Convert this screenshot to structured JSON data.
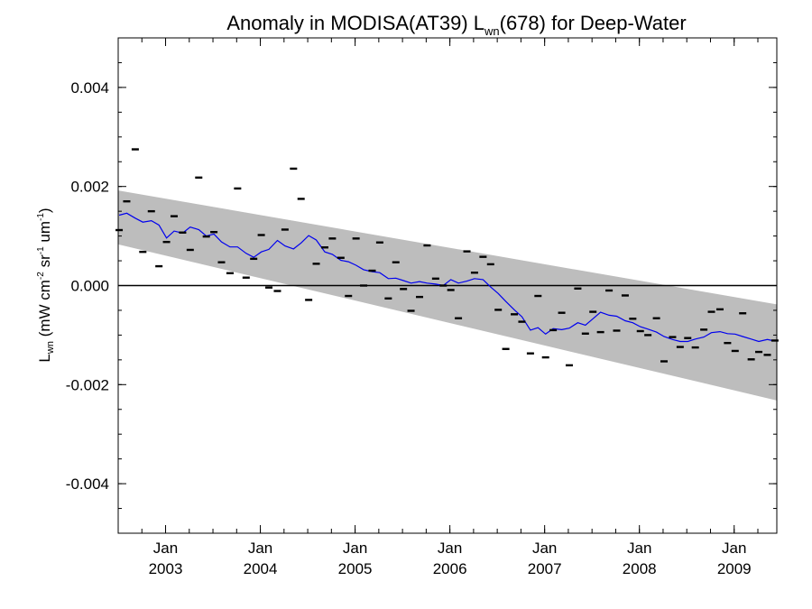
{
  "chart_data": {
    "type": "scatter",
    "title": {
      "prefix": "Anomaly in MODISA(AT39) L",
      "subscript": "wn",
      "suffix": "(678) for Deep-Water"
    },
    "ylabel": {
      "main": "L",
      "sub": "wn",
      "unit_open": " (mW cm",
      "sup1": "-2",
      "mid1": " sr",
      "sup2": "-1",
      "mid2": " um",
      "sup3": "-1",
      "unit_close": ")"
    },
    "xlabel": "",
    "xlim": [
      2002.5,
      2009.45
    ],
    "ylim": [
      -0.005,
      0.005
    ],
    "grid": false,
    "y_ticks": [
      {
        "value": 0.004,
        "label": "0.004"
      },
      {
        "value": 0.002,
        "label": "0.002"
      },
      {
        "value": 0.0,
        "label": "0.000"
      },
      {
        "value": -0.002,
        "label": "-0.002"
      },
      {
        "value": -0.004,
        "label": "-0.004"
      }
    ],
    "x_ticks": [
      {
        "value": 2003.0,
        "month": "Jan",
        "year": "2003"
      },
      {
        "value": 2004.0,
        "month": "Jan",
        "year": "2004"
      },
      {
        "value": 2005.0,
        "month": "Jan",
        "year": "2005"
      },
      {
        "value": 2006.0,
        "month": "Jan",
        "year": "2006"
      },
      {
        "value": 2007.0,
        "month": "Jan",
        "year": "2007"
      },
      {
        "value": 2008.0,
        "month": "Jan",
        "year": "2008"
      },
      {
        "value": 2009.0,
        "month": "Jan",
        "year": "2009"
      }
    ],
    "reference_line": 0.0,
    "band": {
      "x": [
        2002.5,
        2009.45
      ],
      "upper": [
        0.00192,
        -0.00038
      ],
      "lower": [
        0.00083,
        -0.00232
      ],
      "color": "#bdbdbd"
    },
    "series": [
      {
        "kind": "points",
        "color": "#000000",
        "x": [
          2002.51,
          2002.59,
          2002.68,
          2002.76,
          2002.85,
          2002.93,
          2003.01,
          2003.09,
          2003.18,
          2003.26,
          2003.35,
          2003.43,
          2003.51,
          2003.59,
          2003.68,
          2003.76,
          2003.85,
          2003.93,
          2004.01,
          2004.09,
          2004.18,
          2004.26,
          2004.35,
          2004.43,
          2004.51,
          2004.59,
          2004.68,
          2004.76,
          2004.85,
          2004.93,
          2005.01,
          2005.09,
          2005.18,
          2005.26,
          2005.35,
          2005.43,
          2005.51,
          2005.59,
          2005.68,
          2005.76,
          2005.85,
          2005.93,
          2006.01,
          2006.09,
          2006.18,
          2006.26,
          2006.35,
          2006.43,
          2006.51,
          2006.59,
          2006.68,
          2006.76,
          2006.85,
          2006.93,
          2007.01,
          2007.09,
          2007.18,
          2007.26,
          2007.35,
          2007.43,
          2007.51,
          2007.59,
          2007.68,
          2007.76,
          2007.85,
          2007.93,
          2008.01,
          2008.09,
          2008.18,
          2008.26,
          2008.35,
          2008.43,
          2008.51,
          2008.59,
          2008.68,
          2008.76,
          2008.85,
          2008.93,
          2009.01,
          2009.09,
          2009.18,
          2009.26,
          2009.35,
          2009.43
        ],
        "y": [
          0.00112,
          0.0017,
          0.00275,
          0.00068,
          0.0015,
          0.00039,
          0.00088,
          0.0014,
          0.00107,
          0.00072,
          0.00218,
          0.00099,
          0.00108,
          0.00047,
          0.00025,
          0.00196,
          0.00016,
          0.00054,
          0.00102,
          -4e-05,
          -0.00011,
          0.00113,
          0.00236,
          0.00175,
          -0.00029,
          0.00044,
          0.00077,
          0.00095,
          0.00056,
          -0.00021,
          0.00095,
          0.0,
          0.0003,
          0.00087,
          -0.00026,
          0.00047,
          -7e-05,
          -0.00051,
          -0.00023,
          0.00081,
          0.00014,
          0.0,
          -9e-05,
          -0.00066,
          0.00069,
          0.00026,
          0.00058,
          0.00043,
          -0.00049,
          -0.00128,
          -0.00058,
          -0.00073,
          -0.00137,
          -0.00021,
          -0.00145,
          -0.0009,
          -0.00055,
          -0.00161,
          -6e-05,
          -0.00097,
          -0.00053,
          -0.00094,
          -0.0001,
          -0.00091,
          -0.0002,
          -0.00067,
          -0.00092,
          -0.001,
          -0.00066,
          -0.00153,
          -0.00104,
          -0.00124,
          -0.00106,
          -0.00125,
          -0.00089,
          -0.00053,
          -0.00048,
          -0.00116,
          -0.00132,
          -0.00056,
          -0.00149,
          -0.00134,
          -0.0014,
          -0.00111
        ]
      },
      {
        "kind": "line",
        "color": "#0000ee",
        "x": [
          2002.51,
          2002.59,
          2002.68,
          2002.76,
          2002.85,
          2002.93,
          2003.01,
          2003.09,
          2003.18,
          2003.26,
          2003.35,
          2003.43,
          2003.51,
          2003.59,
          2003.68,
          2003.76,
          2003.85,
          2003.93,
          2004.01,
          2004.09,
          2004.18,
          2004.26,
          2004.35,
          2004.43,
          2004.51,
          2004.59,
          2004.68,
          2004.76,
          2004.85,
          2004.93,
          2005.01,
          2005.09,
          2005.18,
          2005.26,
          2005.35,
          2005.43,
          2005.51,
          2005.59,
          2005.68,
          2005.76,
          2005.85,
          2005.93,
          2006.01,
          2006.09,
          2006.18,
          2006.26,
          2006.35,
          2006.43,
          2006.51,
          2006.59,
          2006.68,
          2006.76,
          2006.85,
          2006.93,
          2007.01,
          2007.09,
          2007.18,
          2007.26,
          2007.35,
          2007.43,
          2007.51,
          2007.59,
          2007.68,
          2007.76,
          2007.85,
          2007.93,
          2008.01,
          2008.09,
          2008.18,
          2008.26,
          2008.35,
          2008.43,
          2008.51,
          2008.59,
          2008.68,
          2008.76,
          2008.85,
          2008.93,
          2009.01,
          2009.09,
          2009.18,
          2009.26,
          2009.35,
          2009.43
        ],
        "y": [
          0.00142,
          0.00146,
          0.00136,
          0.00128,
          0.00131,
          0.00122,
          0.00096,
          0.0011,
          0.00106,
          0.00118,
          0.00113,
          0.001,
          0.00104,
          0.00088,
          0.00078,
          0.00078,
          0.00065,
          0.00057,
          0.00068,
          0.00073,
          0.00091,
          0.0008,
          0.00074,
          0.00086,
          0.00101,
          0.00092,
          0.00068,
          0.00063,
          0.00051,
          0.00048,
          0.00041,
          0.00032,
          0.00028,
          0.00026,
          0.00014,
          0.00015,
          0.0001,
          5e-05,
          8e-05,
          5e-05,
          3e-05,
          0.0,
          0.00012,
          5e-05,
          9e-05,
          0.00014,
          0.00012,
          -3e-05,
          -0.00016,
          -0.00032,
          -0.00049,
          -0.00063,
          -0.0009,
          -0.00085,
          -0.00098,
          -0.00087,
          -0.00089,
          -0.00086,
          -0.00075,
          -0.0008,
          -0.00067,
          -0.00054,
          -0.0006,
          -0.00062,
          -0.00071,
          -0.00075,
          -0.00083,
          -0.00088,
          -0.00094,
          -0.00103,
          -0.00109,
          -0.00113,
          -0.00113,
          -0.00108,
          -0.00104,
          -0.00095,
          -0.00093,
          -0.00097,
          -0.00098,
          -0.00103,
          -0.00108,
          -0.00113,
          -0.00109,
          -0.00112
        ]
      }
    ]
  }
}
